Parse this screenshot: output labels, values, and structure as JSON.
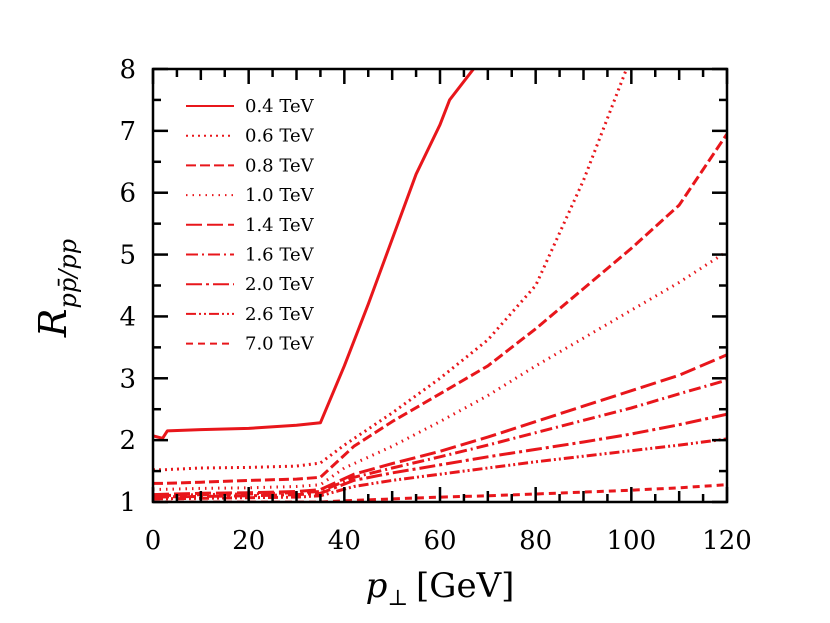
{
  "chart_data": {
    "type": "line",
    "title": "",
    "xlabel": {
      "var": "p",
      "sub": "⊥",
      "unit": "[GeV]"
    },
    "ylabel": {
      "var": "R",
      "sub": "pp̄/pp"
    },
    "xlim": [
      0,
      120
    ],
    "ylim": [
      1,
      8
    ],
    "xticks": [
      0,
      20,
      40,
      60,
      80,
      100,
      120
    ],
    "yticks": [
      1,
      2,
      3,
      4,
      5,
      6,
      7,
      8
    ],
    "grid": false,
    "legend_position": "top-left",
    "color": "#e8161b",
    "series": [
      {
        "name": "0.4 TeV",
        "dash": "solid",
        "x": [
          0,
          2,
          3,
          10,
          20,
          30,
          35,
          40,
          45,
          50,
          55,
          60,
          62,
          67
        ],
        "y": [
          2.07,
          2.03,
          2.15,
          2.17,
          2.19,
          2.24,
          2.28,
          3.2,
          4.2,
          5.25,
          6.3,
          7.1,
          7.5,
          8.0
        ]
      },
      {
        "name": "0.6 TeV",
        "dash": "dot",
        "x": [
          0,
          2,
          10,
          20,
          30,
          35,
          40,
          50,
          60,
          70,
          80,
          90,
          99
        ],
        "y": [
          1.52,
          1.52,
          1.55,
          1.56,
          1.58,
          1.63,
          1.92,
          2.44,
          3.0,
          3.62,
          4.5,
          6.2,
          8.0
        ]
      },
      {
        "name": "0.8 TeV",
        "dash": "dash",
        "x": [
          0,
          2,
          10,
          20,
          30,
          35,
          42,
          50,
          60,
          70,
          80,
          90,
          100,
          110,
          120
        ],
        "y": [
          1.3,
          1.3,
          1.32,
          1.35,
          1.37,
          1.4,
          1.9,
          2.3,
          2.75,
          3.2,
          3.8,
          4.45,
          5.1,
          5.8,
          6.95
        ]
      },
      {
        "name": "1.0 TeV",
        "dash": "fine-dot",
        "x": [
          0,
          10,
          20,
          30,
          35,
          40,
          50,
          60,
          70,
          80,
          90,
          100,
          110,
          120
        ],
        "y": [
          1.2,
          1.22,
          1.23,
          1.25,
          1.28,
          1.55,
          1.9,
          2.3,
          2.72,
          3.2,
          3.65,
          4.1,
          4.55,
          5.05
        ]
      },
      {
        "name": "1.4 TeV",
        "dash": "long-dash",
        "x": [
          0,
          10,
          20,
          30,
          35,
          42,
          50,
          60,
          70,
          80,
          90,
          100,
          110,
          120
        ],
        "y": [
          1.12,
          1.14,
          1.15,
          1.17,
          1.2,
          1.45,
          1.62,
          1.82,
          2.05,
          2.3,
          2.55,
          2.8,
          3.05,
          3.38
        ]
      },
      {
        "name": "1.6 TeV",
        "dash": "dash-dot",
        "x": [
          0,
          10,
          20,
          30,
          35,
          42,
          50,
          60,
          70,
          80,
          90,
          100,
          110,
          120
        ],
        "y": [
          1.1,
          1.12,
          1.13,
          1.15,
          1.17,
          1.4,
          1.55,
          1.73,
          1.92,
          2.12,
          2.32,
          2.52,
          2.75,
          2.97
        ]
      },
      {
        "name": "2.0 TeV",
        "dash": "long-dash-dot",
        "x": [
          0,
          10,
          20,
          30,
          35,
          42,
          50,
          60,
          70,
          80,
          90,
          100,
          110,
          120
        ],
        "y": [
          1.08,
          1.09,
          1.1,
          1.12,
          1.14,
          1.35,
          1.47,
          1.6,
          1.73,
          1.85,
          1.97,
          2.1,
          2.25,
          2.42
        ]
      },
      {
        "name": "2.6 TeV",
        "dash": "dash-dot-dot",
        "x": [
          0,
          10,
          20,
          30,
          35,
          42,
          50,
          60,
          70,
          80,
          90,
          100,
          110,
          120
        ],
        "y": [
          1.05,
          1.06,
          1.07,
          1.08,
          1.1,
          1.25,
          1.35,
          1.45,
          1.55,
          1.65,
          1.74,
          1.83,
          1.92,
          2.02
        ]
      },
      {
        "name": "7.0 TeV",
        "dash": "short-dash",
        "x": [
          0,
          10,
          20,
          30,
          35,
          40,
          50,
          60,
          70,
          80,
          90,
          100,
          110,
          120
        ],
        "y": [
          1.0,
          1.0,
          1.0,
          1.0,
          1.0,
          1.02,
          1.05,
          1.08,
          1.1,
          1.13,
          1.16,
          1.19,
          1.23,
          1.28
        ]
      }
    ]
  }
}
